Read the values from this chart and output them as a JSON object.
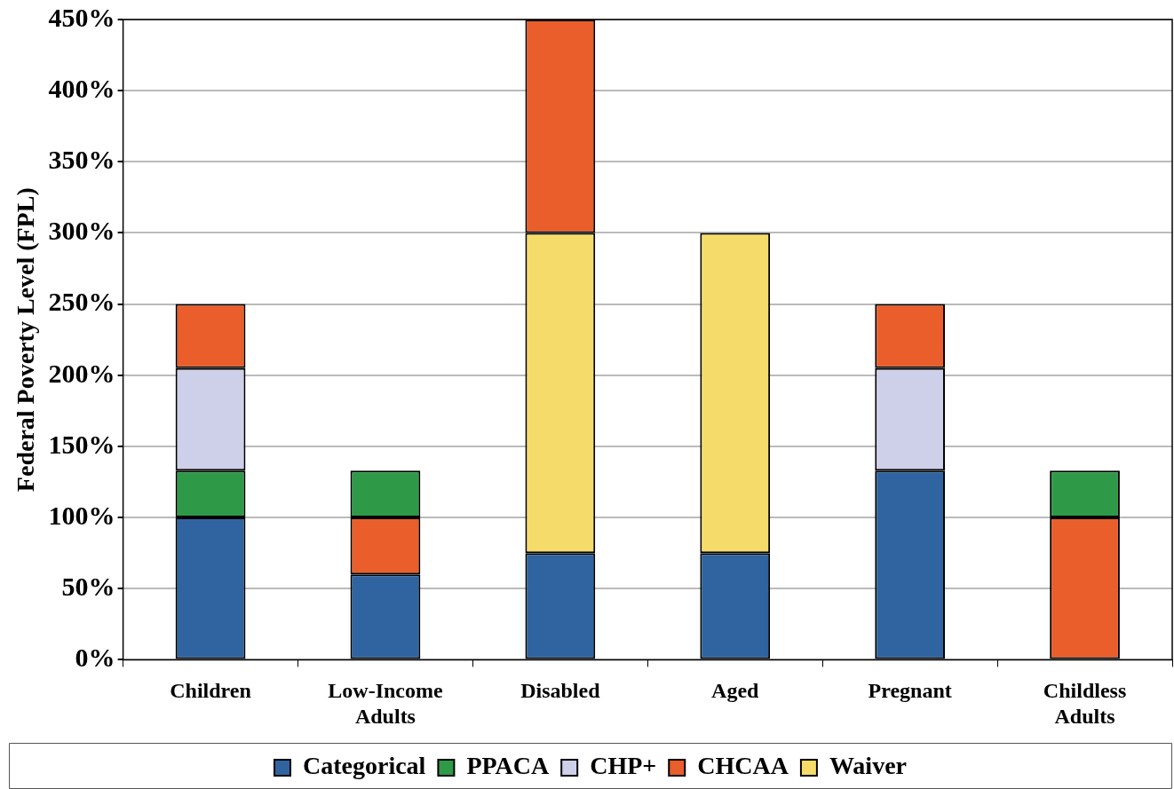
{
  "chart_data": {
    "type": "bar",
    "ylabel": "Federal Poverty Level (FPL)",
    "categories": [
      "Children",
      "Low-Income Adults",
      "Disabled",
      "Aged",
      "Pregnant",
      "Childless Adults"
    ],
    "series": [
      {
        "name": "Categorical",
        "color": "#2f64a0",
        "values": [
          100,
          60,
          75,
          75,
          133,
          null
        ],
        "base": [
          0,
          0,
          0,
          0,
          0,
          null
        ]
      },
      {
        "name": "PPACA",
        "color": "#2e9a48",
        "values": [
          33,
          33,
          null,
          null,
          null,
          33
        ],
        "base": [
          100,
          100,
          null,
          null,
          null,
          100
        ]
      },
      {
        "name": "CHP+",
        "color": "#cdd0e8",
        "values": [
          72,
          null,
          null,
          null,
          72,
          null
        ],
        "base": [
          133,
          null,
          null,
          null,
          133,
          null
        ]
      },
      {
        "name": "CHCAA",
        "color": "#e95e2a",
        "values": [
          45,
          40,
          150,
          null,
          45,
          100
        ],
        "base": [
          205,
          60,
          300,
          null,
          205,
          0
        ]
      },
      {
        "name": "Waiver",
        "color": "#f5dc6a",
        "values": [
          null,
          null,
          225,
          225,
          null,
          null
        ],
        "base": [
          null,
          null,
          75,
          75,
          null,
          null
        ]
      }
    ],
    "ylim": [
      0,
      450
    ],
    "yticks": [
      {
        "value": 0,
        "label": "0%"
      },
      {
        "value": 50,
        "label": "50%"
      },
      {
        "value": 100,
        "label": "100%"
      },
      {
        "value": 150,
        "label": "150%"
      },
      {
        "value": 200,
        "label": "200%"
      },
      {
        "value": 250,
        "label": "250%"
      },
      {
        "value": 300,
        "label": "300%"
      },
      {
        "value": 350,
        "label": "350%"
      },
      {
        "value": 400,
        "label": "400%"
      },
      {
        "value": 450,
        "label": "450%"
      }
    ],
    "grid": "y",
    "legend": "bottom"
  }
}
